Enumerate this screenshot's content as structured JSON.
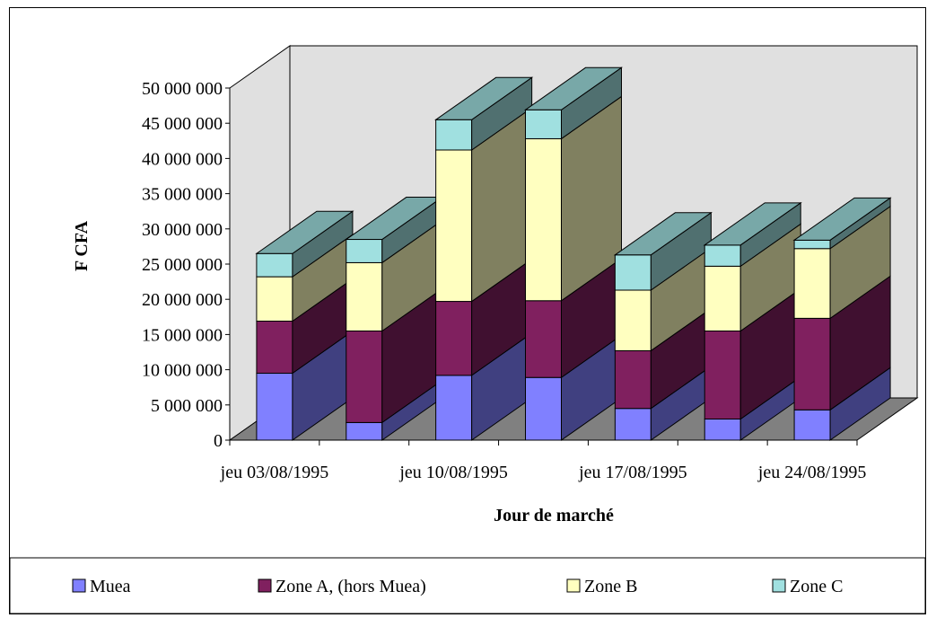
{
  "chart_data": {
    "type": "bar",
    "stacked": true,
    "three_d": true,
    "xlabel": "Jour de marché",
    "ylabel": "F CFA",
    "ylim": [
      0,
      50000000
    ],
    "ytick_step": 5000000,
    "ytick_labels": [
      "0",
      "5 000 000",
      "10 000 000",
      "15 000 000",
      "20 000 000",
      "25 000 000",
      "30 000 000",
      "35 000 000",
      "40 000 000",
      "45 000 000",
      "50 000 000"
    ],
    "categories": [
      "jeu 03/08/1995",
      "",
      "jeu 10/08/1995",
      "",
      "jeu 17/08/1995",
      "",
      "jeu 24/08/1995"
    ],
    "xtick_labels": [
      "jeu 03/08/1995",
      "jeu 10/08/1995",
      "jeu 17/08/1995",
      "jeu 24/08/1995"
    ],
    "series": [
      {
        "name": "Muea",
        "color": "#8080ff",
        "values": [
          9500000,
          2500000,
          9200000,
          8900000,
          4500000,
          3000000,
          4300000
        ]
      },
      {
        "name": "Zone A, (hors Muea)",
        "color": "#80205f",
        "values": [
          7400000,
          13000000,
          10500000,
          10900000,
          8200000,
          12500000,
          13000000
        ]
      },
      {
        "name": "Zone B",
        "color": "#ffffc0",
        "values": [
          6300000,
          9700000,
          21500000,
          23000000,
          8600000,
          9200000,
          9900000
        ]
      },
      {
        "name": "Zone C",
        "color": "#a0e0e0",
        "values": [
          3300000,
          3300000,
          4300000,
          4100000,
          5000000,
          3000000,
          1200000
        ]
      }
    ],
    "grid": false,
    "wall_color": "#e0e0e0",
    "floor_color": "#808080",
    "legend_position": "bottom"
  }
}
